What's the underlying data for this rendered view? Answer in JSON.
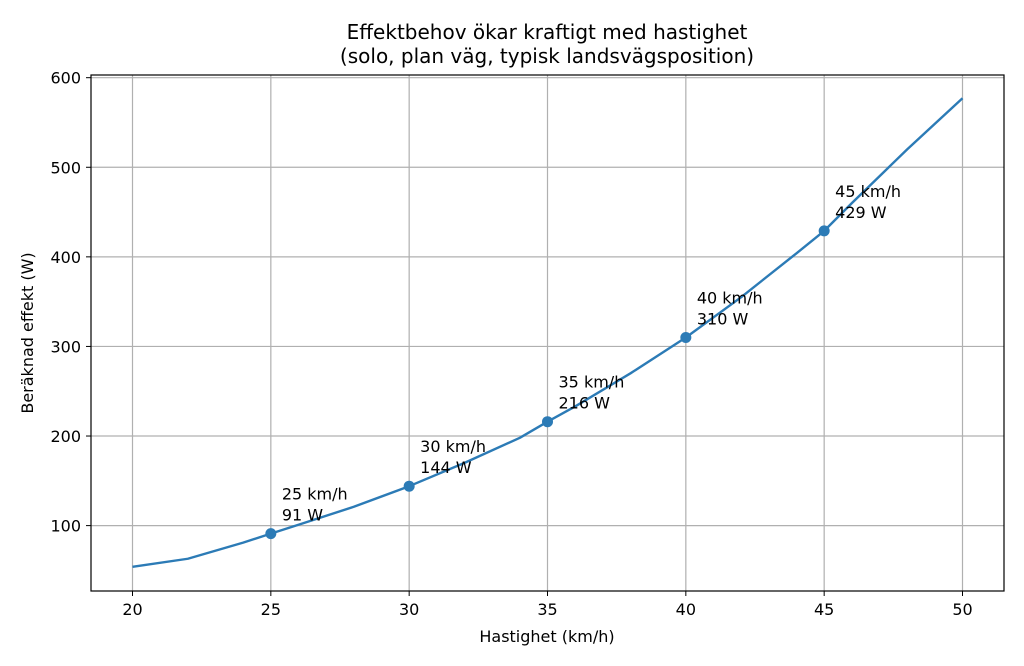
{
  "chart_data": {
    "type": "line",
    "title_lines": [
      "Effektbehov ökar kraftigt med hastighet",
      "(solo, plan väg, typisk landsvägsposition)"
    ],
    "xlabel": "Hastighet (km/h)",
    "ylabel": "Beräknad effekt (W)",
    "xlim": [
      18.5,
      51.5
    ],
    "ylim": [
      27,
      603
    ],
    "xticks": [
      20,
      25,
      30,
      35,
      40,
      45,
      50
    ],
    "yticks": [
      100,
      200,
      300,
      400,
      500,
      600
    ],
    "grid": true,
    "color": "#2c7bb6",
    "series": [
      {
        "x": [
          20,
          22,
          24,
          25,
          26,
          28,
          30,
          32,
          34,
          35,
          36,
          38,
          40,
          42,
          44,
          45,
          46,
          48,
          50
        ],
        "y": [
          54,
          63,
          81,
          91,
          101,
          121,
          144,
          170,
          198,
          216,
          233,
          270,
          310,
          355,
          404,
          429,
          460,
          520,
          577
        ]
      }
    ],
    "points": [
      {
        "x": 25,
        "y": 91,
        "label_line1": "25 km/h",
        "label_line2": "91 W"
      },
      {
        "x": 30,
        "y": 144,
        "label_line1": "30 km/h",
        "label_line2": "144 W"
      },
      {
        "x": 35,
        "y": 216,
        "label_line1": "35 km/h",
        "label_line2": "216 W"
      },
      {
        "x": 40,
        "y": 310,
        "label_line1": "40 km/h",
        "label_line2": "310 W"
      },
      {
        "x": 45,
        "y": 429,
        "label_line1": "45 km/h",
        "label_line2": "429 W"
      }
    ]
  }
}
